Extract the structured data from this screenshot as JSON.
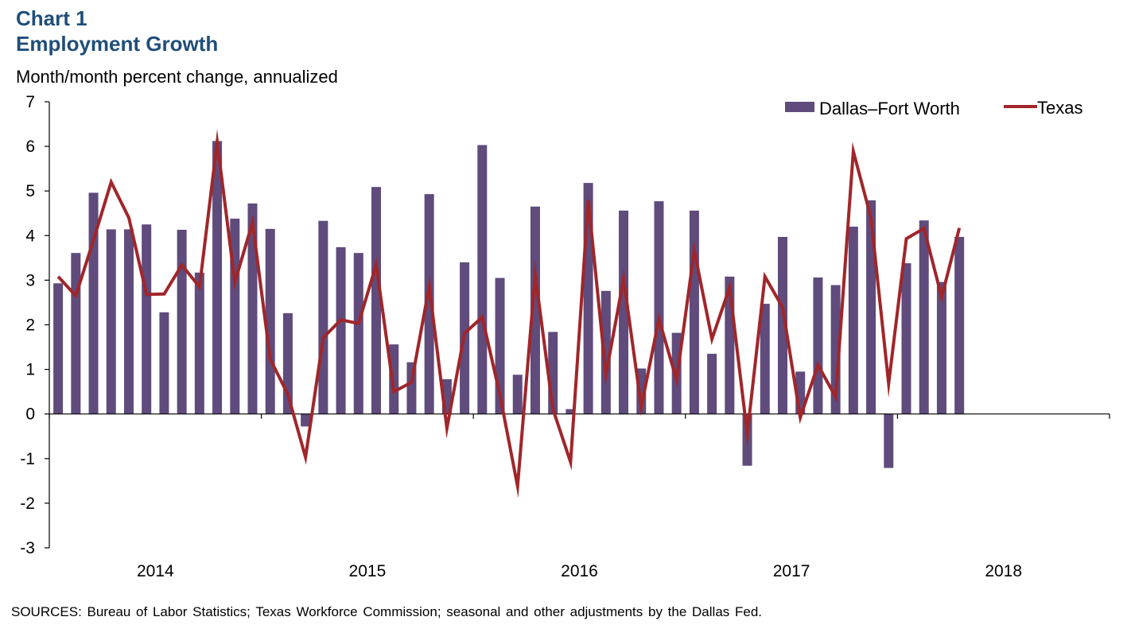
{
  "header": {
    "chart_number": "Chart 1",
    "title": "Employment Growth",
    "units": "Month/month percent change, annualized"
  },
  "source": "SOURCES: Bureau of Labor Statistics; Texas Workforce Commission; seasonal and other adjustments by the Dallas Fed.",
  "colors": {
    "bar": "#5f4b7c",
    "line": "#a0262a",
    "title": "#1f4e79"
  },
  "chart_data": {
    "type": "bar",
    "title": "Employment Growth",
    "ylabel": "Month/month percent change, annualized",
    "xlabel": "",
    "ylim": [
      -3,
      7
    ],
    "yticks": [
      -3,
      -2,
      -1,
      0,
      1,
      2,
      3,
      4,
      5,
      6,
      7
    ],
    "x_tick_labels": [
      "2014",
      "2015",
      "2016",
      "2017",
      "2018"
    ],
    "x_periods": 60,
    "legend": {
      "position": "top-right",
      "entries": [
        "Dallas–Fort Worth",
        "Texas"
      ]
    },
    "series": [
      {
        "name": "Dallas–Fort Worth",
        "kind": "bar",
        "values": [
          2.93,
          3.61,
          4.96,
          4.14,
          4.14,
          4.25,
          2.28,
          4.13,
          3.17,
          6.12,
          4.38,
          4.72,
          4.15,
          2.26,
          -0.28,
          4.33,
          3.74,
          3.61,
          5.09,
          1.56,
          1.16,
          4.93,
          0.78,
          3.4,
          6.03,
          3.05,
          0.88,
          4.65,
          1.84,
          0.11,
          5.18,
          2.76,
          4.56,
          1.02,
          4.77,
          1.82,
          4.56,
          1.35,
          3.08,
          -1.16,
          2.47,
          3.97,
          0.95,
          3.06,
          2.89,
          4.2,
          4.79,
          -1.21,
          3.38,
          4.34,
          2.96,
          3.97
        ]
      },
      {
        "name": "Texas",
        "kind": "line",
        "values": [
          3.08,
          2.65,
          3.9,
          5.2,
          4.4,
          2.68,
          2.69,
          3.34,
          2.85,
          6.1,
          2.95,
          4.3,
          1.23,
          0.44,
          -0.97,
          1.71,
          2.11,
          2.03,
          3.35,
          0.5,
          0.71,
          2.86,
          -0.32,
          1.81,
          2.17,
          0.43,
          -1.62,
          3.12,
          0.11,
          -1.08,
          4.8,
          0.88,
          3.03,
          0.16,
          2.13,
          0.76,
          3.67,
          1.68,
          2.84,
          -0.45,
          3.08,
          2.39,
          -0.08,
          1.1,
          0.38,
          5.89,
          4.4,
          0.68,
          3.93,
          4.16,
          2.62,
          4.17
        ]
      }
    ]
  }
}
